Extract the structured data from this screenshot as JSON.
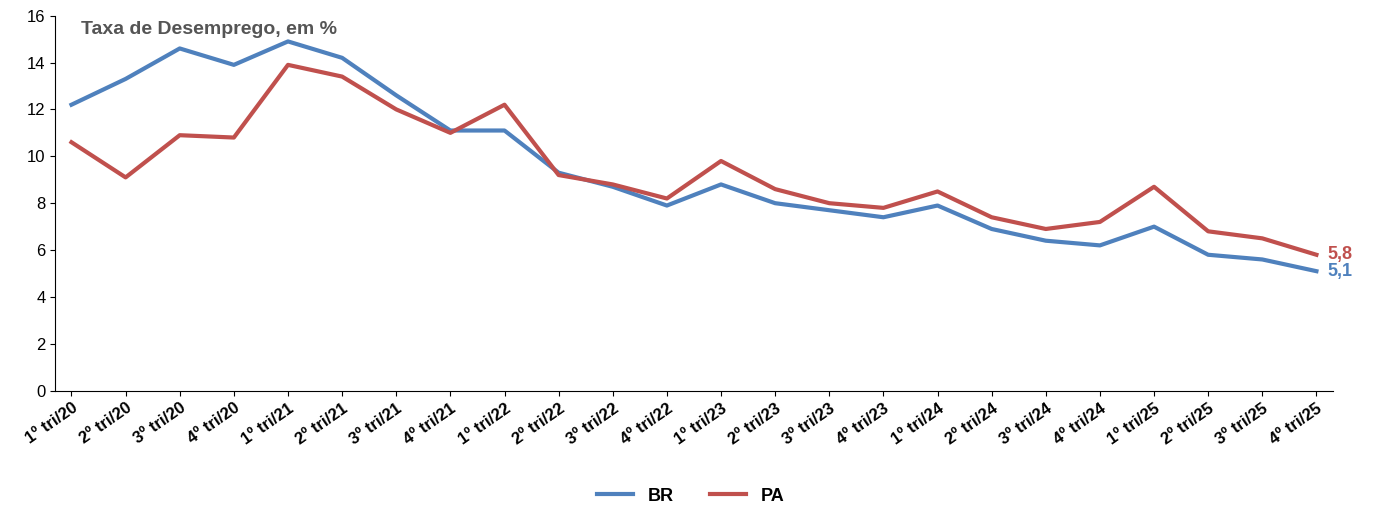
{
  "chart_data": {
    "type": "line",
    "title": "Taxa de Desemprego, em %",
    "categories": [
      "1º tri/20",
      "2º tri/20",
      "3º tri/20",
      "4º tri/20",
      "1º tri/21",
      "2º tri/21",
      "3º tri/21",
      "4º tri/21",
      "1º tri/22",
      "2º tri/22",
      "3º tri/22",
      "4º tri/22",
      "1º tri/23",
      "2º tri/23",
      "3º tri/23",
      "4º tri/23",
      "1º tri/24",
      "2º tri/24",
      "3º tri/24",
      "4º tri/24",
      "1º tri/25",
      "2º tri/25",
      "3º tri/25",
      "4º tri/25"
    ],
    "series": [
      {
        "name": "BR",
        "color": "#4F81BD",
        "values": [
          12.2,
          13.3,
          14.6,
          13.9,
          14.9,
          14.2,
          12.6,
          11.1,
          11.1,
          9.3,
          8.7,
          7.9,
          8.8,
          8.0,
          7.7,
          7.4,
          7.9,
          6.9,
          6.4,
          6.2,
          7.0,
          5.8,
          5.6,
          5.1
        ],
        "value_labels": [
          null,
          null,
          null,
          null,
          null,
          null,
          null,
          null,
          null,
          null,
          null,
          null,
          null,
          null,
          null,
          null,
          null,
          null,
          null,
          null,
          null,
          null,
          null,
          "5,1"
        ]
      },
      {
        "name": "PA",
        "color": "#C0504D",
        "values": [
          10.6,
          9.1,
          10.9,
          10.8,
          13.9,
          13.4,
          12.0,
          11.0,
          12.2,
          9.2,
          8.8,
          8.2,
          9.8,
          8.6,
          8.0,
          7.8,
          8.5,
          7.4,
          6.9,
          7.2,
          8.7,
          6.8,
          6.5,
          5.8
        ],
        "value_labels": [
          null,
          null,
          null,
          null,
          null,
          null,
          null,
          null,
          null,
          null,
          null,
          null,
          null,
          null,
          null,
          null,
          null,
          null,
          null,
          null,
          null,
          null,
          null,
          "5,8"
        ]
      }
    ],
    "ylim": [
      0,
      16
    ],
    "yticks": [
      0,
      2,
      4,
      6,
      8,
      10,
      12,
      14,
      16
    ],
    "grid": false,
    "legend": "bottom",
    "line_style": "solid"
  }
}
